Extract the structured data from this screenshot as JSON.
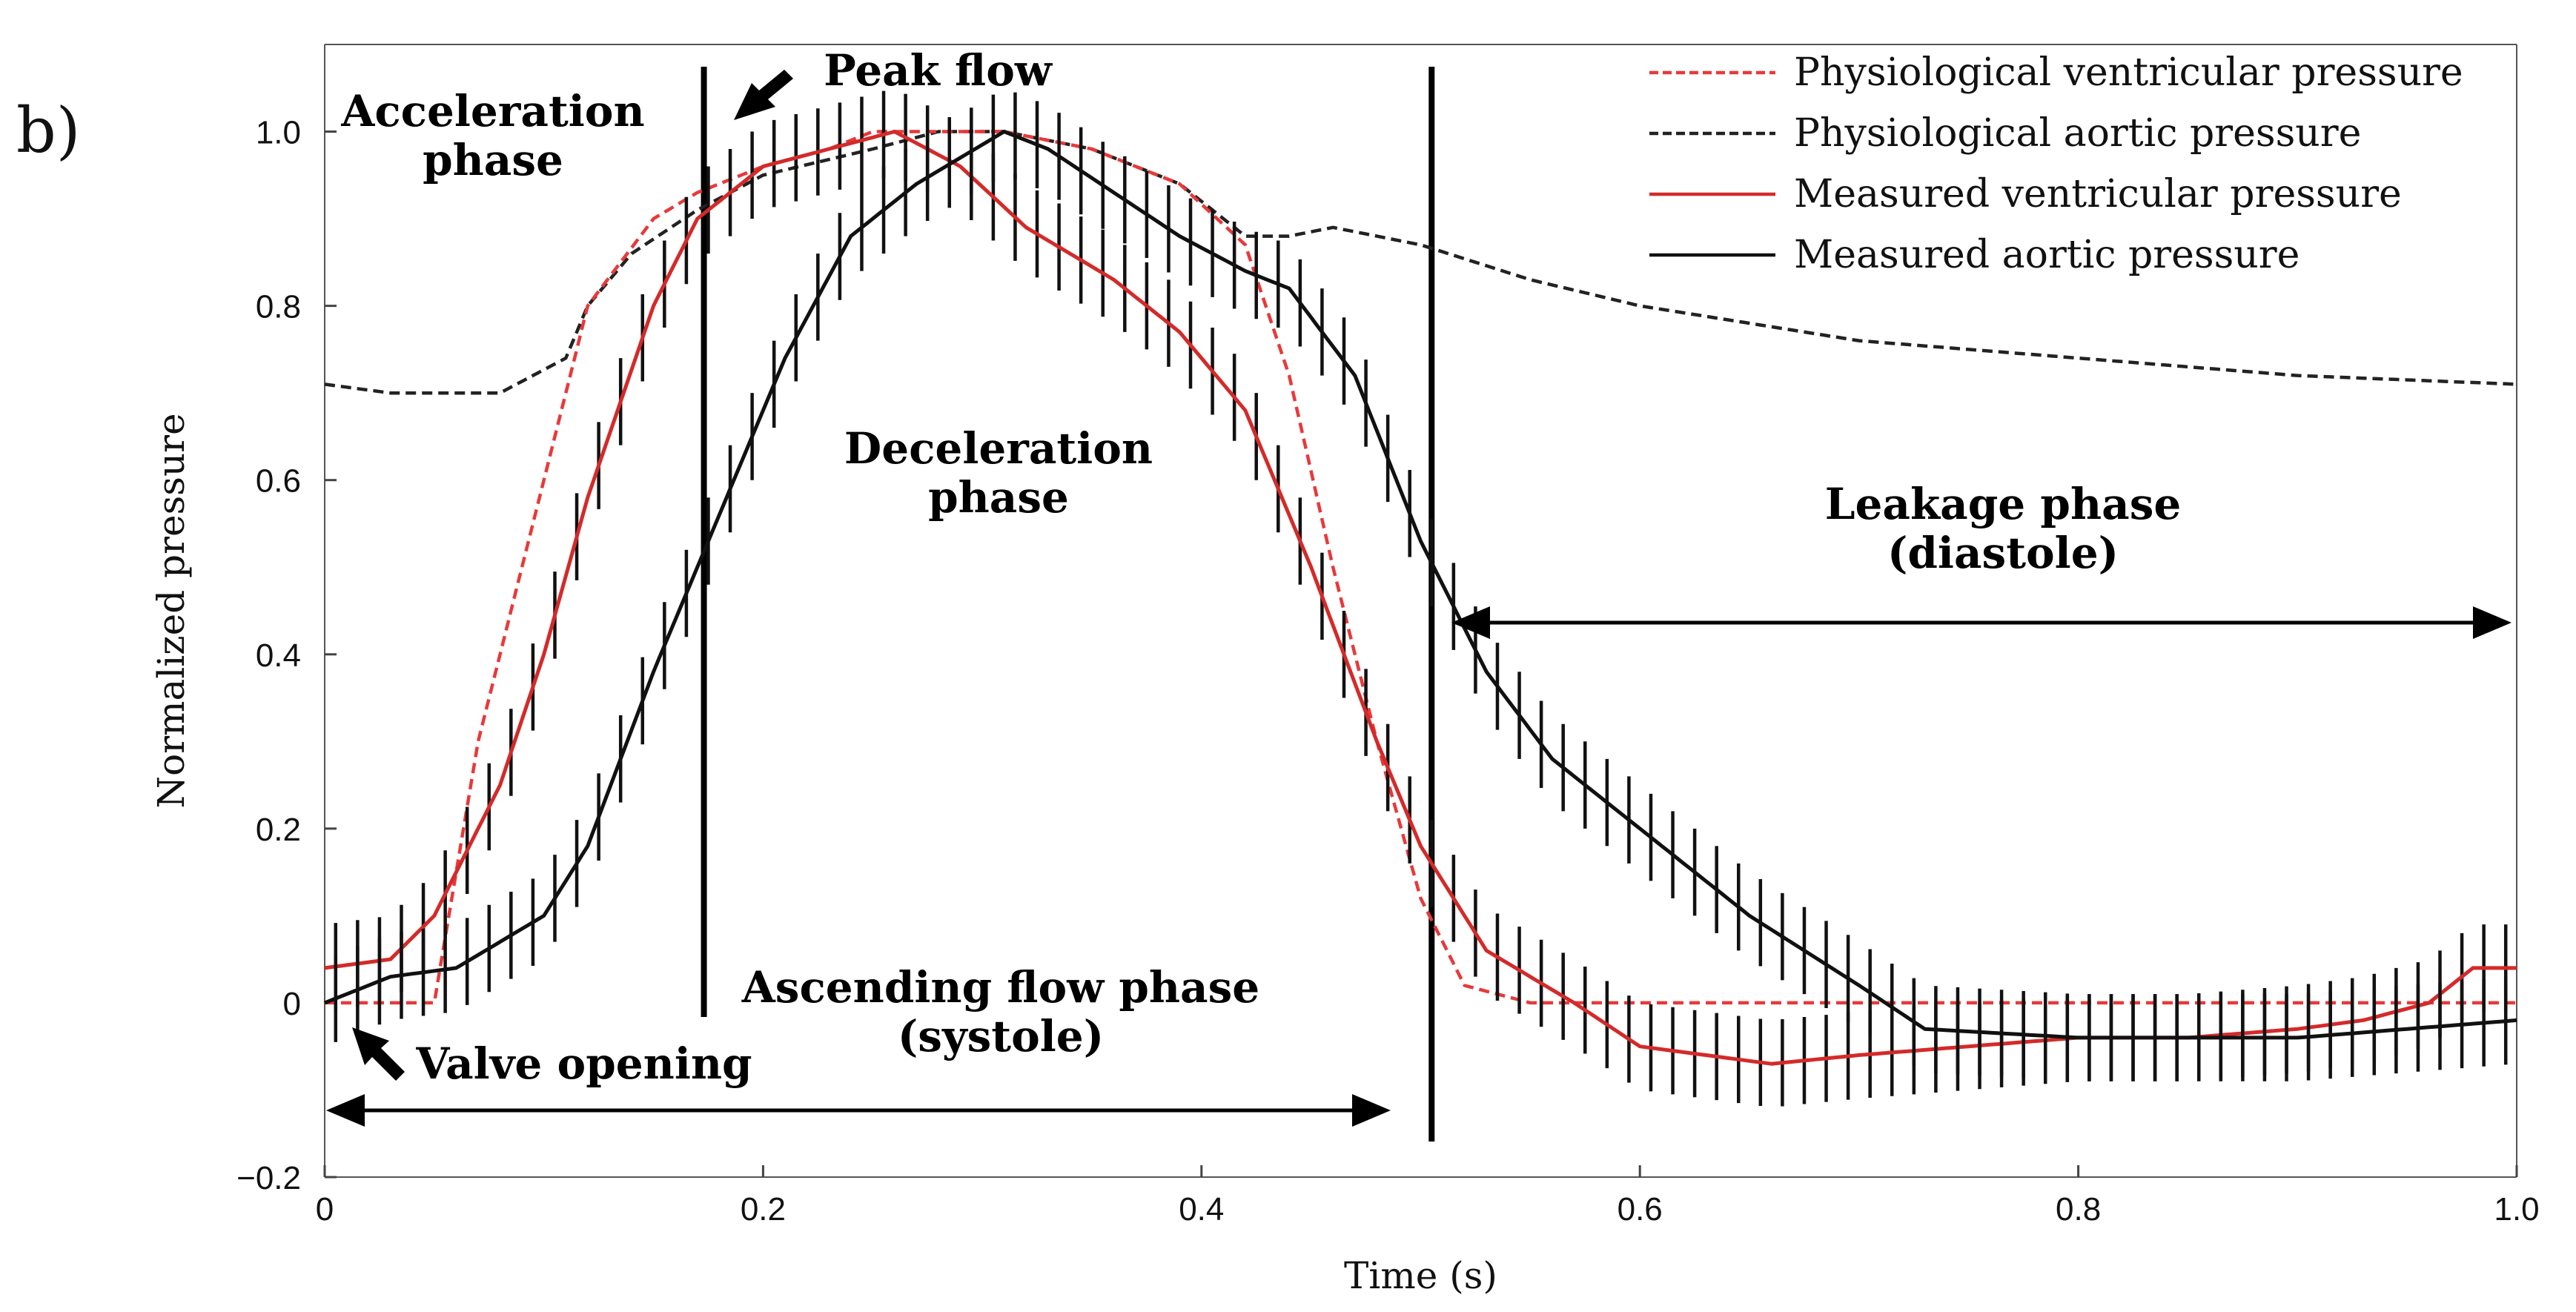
{
  "panel_label": "b)",
  "chart_data": {
    "type": "line",
    "xlabel": "Time (s)",
    "ylabel": "Normalized pressure",
    "xlim": [
      0,
      1.0
    ],
    "ylim": [
      -0.2,
      1.1
    ],
    "xticks": [
      0,
      0.2,
      0.4,
      0.6,
      0.8,
      1.0
    ],
    "xtick_labels": [
      "0",
      "0.2",
      "0.4",
      "0.6",
      "0.8",
      "1.0"
    ],
    "yticks": [
      -0.2,
      0,
      0.2,
      0.4,
      0.6,
      0.8,
      1.0
    ],
    "ytick_labels": [
      "−0.2",
      "0",
      "0.2",
      "0.4",
      "0.6",
      "0.8",
      "1.0"
    ],
    "grid": false,
    "legend_position": "top-right",
    "series": [
      {
        "name": "Physiological ventricular pressure",
        "style": "dashed",
        "color": "#e8393a",
        "x": [
          0,
          0.05,
          0.07,
          0.1,
          0.12,
          0.15,
          0.17,
          0.2,
          0.23,
          0.25,
          0.28,
          0.31,
          0.35,
          0.39,
          0.42,
          0.44,
          0.46,
          0.48,
          0.5,
          0.52,
          0.55,
          0.6,
          0.7,
          0.8,
          0.9,
          1.0
        ],
        "y": [
          0,
          0,
          0.3,
          0.6,
          0.8,
          0.9,
          0.93,
          0.96,
          0.98,
          1.0,
          1.0,
          1.0,
          0.98,
          0.94,
          0.87,
          0.72,
          0.5,
          0.3,
          0.12,
          0.02,
          0,
          0,
          0,
          0,
          0,
          0
        ]
      },
      {
        "name": "Physiological aortic pressure",
        "style": "dashed",
        "color": "#222222",
        "x": [
          0,
          0.03,
          0.08,
          0.11,
          0.12,
          0.14,
          0.17,
          0.2,
          0.25,
          0.28,
          0.31,
          0.35,
          0.39,
          0.42,
          0.44,
          0.46,
          0.48,
          0.5,
          0.55,
          0.6,
          0.7,
          0.8,
          0.9,
          1.0
        ],
        "y": [
          0.71,
          0.7,
          0.7,
          0.74,
          0.8,
          0.86,
          0.91,
          0.95,
          0.98,
          1.0,
          1.0,
          0.98,
          0.94,
          0.88,
          0.88,
          0.89,
          0.88,
          0.87,
          0.83,
          0.8,
          0.76,
          0.74,
          0.72,
          0.71
        ]
      },
      {
        "name": "Measured ventricular pressure",
        "style": "solid",
        "color": "#d42a2a",
        "x": [
          0,
          0.03,
          0.05,
          0.08,
          0.1,
          0.12,
          0.15,
          0.17,
          0.2,
          0.23,
          0.26,
          0.29,
          0.32,
          0.36,
          0.39,
          0.42,
          0.45,
          0.48,
          0.5,
          0.53,
          0.57,
          0.6,
          0.66,
          0.7,
          0.75,
          0.8,
          0.85,
          0.9,
          0.93,
          0.96,
          0.98,
          1.0
        ],
        "y": [
          0.04,
          0.05,
          0.1,
          0.25,
          0.4,
          0.58,
          0.8,
          0.9,
          0.96,
          0.98,
          1.0,
          0.96,
          0.89,
          0.83,
          0.77,
          0.68,
          0.5,
          0.3,
          0.18,
          0.06,
          0.0,
          -0.05,
          -0.07,
          -0.06,
          -0.05,
          -0.04,
          -0.04,
          -0.03,
          -0.02,
          0.0,
          0.04,
          0.04
        ]
      },
      {
        "name": "Measured aortic pressure",
        "style": "solid",
        "color": "#111111",
        "x": [
          0,
          0.03,
          0.06,
          0.1,
          0.12,
          0.15,
          0.18,
          0.21,
          0.24,
          0.27,
          0.29,
          0.31,
          0.33,
          0.36,
          0.39,
          0.42,
          0.44,
          0.47,
          0.5,
          0.53,
          0.56,
          0.6,
          0.65,
          0.7,
          0.73,
          0.8,
          0.9,
          1.0
        ],
        "y": [
          0,
          0.03,
          0.04,
          0.1,
          0.18,
          0.38,
          0.56,
          0.74,
          0.88,
          0.94,
          0.97,
          1.0,
          0.98,
          0.93,
          0.88,
          0.84,
          0.82,
          0.72,
          0.53,
          0.38,
          0.28,
          0.2,
          0.1,
          0.02,
          -0.03,
          -0.04,
          -0.04,
          -0.02
        ]
      }
    ],
    "error_bar_half_height": 0.05,
    "error_bar_step": 0.01,
    "phase_lines": [
      0.173,
      0.505
    ],
    "annotations": {
      "acceleration": "Acceleration\nphase",
      "peak_flow": "Peak flow",
      "deceleration": "Deceleration\nphase",
      "leakage": "Leakage phase\n(diastole)",
      "ascending": "Ascending flow phase\n(systole)",
      "valve_opening": "Valve opening"
    }
  }
}
